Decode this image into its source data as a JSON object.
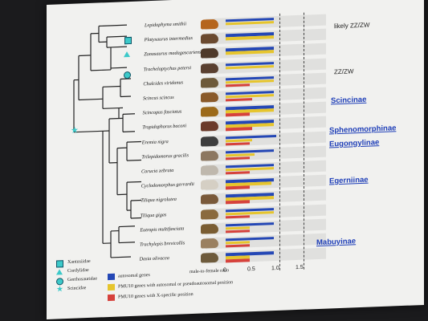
{
  "chart": {
    "notes": [
      "likely ZZ/ZW",
      "ZZ/ZW"
    ],
    "subfamilies": [
      "Scincinae",
      "Sphenomorphinae",
      "Eugongylinae",
      "Egerniinae",
      "Mabuyinae"
    ],
    "axis_label": "male-to-female ratio",
    "axis_ticks": [
      "0",
      "0.5",
      "1.0",
      "1.5"
    ],
    "family_legend": [
      "Xantusiidae",
      "Cordylidae",
      "Gerrhosauridae",
      "Scincidae"
    ],
    "bar_legend": [
      {
        "label": "autosomal genes",
        "color": "#2447b5"
      },
      {
        "label": "PMU10 genes with autosomal or pseudoautosomal position",
        "color": "#e6c52c"
      },
      {
        "label": "PMU10 genes with X-specific position",
        "color": "#d6423c"
      }
    ],
    "thumb_colors": [
      "#b5651d",
      "#6b4a2f",
      "#4f3a2a",
      "#5a4030",
      "#6e5a3a",
      "#8a5a2a",
      "#9c6a1a",
      "#6b3a2a",
      "#3e3e3e",
      "#8c7760",
      "#bfb8ad",
      "#d5cfc4",
      "#7a5a3a",
      "#8a6a3e",
      "#7a5d32",
      "#9a8060",
      "#6e5b3c"
    ]
  },
  "chart_data": {
    "type": "bar",
    "xlabel": "male-to-female ratio",
    "xlim": [
      0,
      1.5
    ],
    "categories": [
      "Lepidophyma smithii",
      "Platysaurus intermedius",
      "Zonosaurus madagascariensis",
      "Tracheloptychus petersi",
      "Chalcides viridanus",
      "Scincus scincus",
      "Scincopus fasciatus",
      "Tropidophorus baconi",
      "Eremia nigra",
      "Trilepidomorus gracilis",
      "Corucia zebrata",
      "Cyclodomorphus gerrardii",
      "Tiliqua nigrolutea",
      "Tiliqua gigas",
      "Eutropis multifasciata",
      "Trachylepis brevicollis",
      "Dasia olivacea"
    ],
    "series": [
      {
        "name": "autosomal genes",
        "values": [
          1.0,
          1.0,
          1.0,
          1.0,
          1.0,
          1.0,
          1.0,
          1.0,
          1.05,
          1.0,
          1.0,
          1.0,
          1.0,
          1.0,
          1.0,
          1.0,
          1.0
        ]
      },
      {
        "name": "PMU10 genes with autosomal or pseudoautosomal position",
        "values": [
          1.0,
          1.0,
          1.0,
          1.0,
          1.0,
          1.0,
          1.0,
          1.0,
          0.55,
          0.6,
          1.0,
          0.95,
          1.0,
          1.0,
          0.5,
          0.5,
          0.5
        ]
      },
      {
        "name": "PMU10 genes with X-specific position",
        "values": [
          null,
          null,
          null,
          null,
          0.5,
          0.55,
          0.5,
          0.55,
          0.5,
          0.5,
          0.5,
          0.5,
          0.5,
          0.5,
          0.5,
          0.5,
          0.5
        ]
      }
    ]
  }
}
